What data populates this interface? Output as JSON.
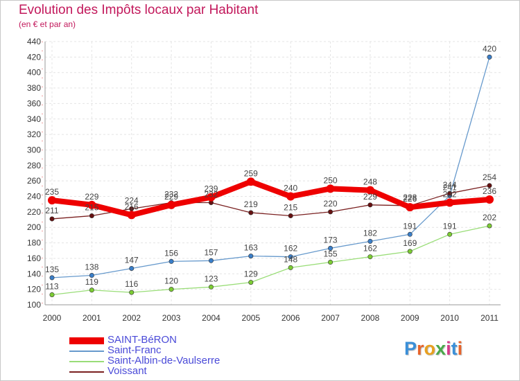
{
  "header": {
    "title": "Evolution des Impôts locaux par Habitant",
    "subtitle": "(en € et par an)"
  },
  "logo": {
    "text": "Proxiti",
    "letters": [
      "P",
      "r",
      "o",
      "x",
      "i",
      "t",
      "i"
    ],
    "colors": [
      "#3a8fd8",
      "#e8642a",
      "#e8a020",
      "#4aa84a",
      "#d83a8a",
      "#3a8fd8",
      "#e8642a"
    ]
  },
  "chart_data": {
    "type": "line",
    "title": "Evolution des Impôts locaux par Habitant",
    "subtitle": "(en € et par an)",
    "xlabel": "",
    "ylabel": "",
    "ylim": [
      100,
      440
    ],
    "ytick_step": 20,
    "grid": true,
    "legend_position": "bottom-left",
    "categories": [
      "2000",
      "2001",
      "2002",
      "2003",
      "2004",
      "2005",
      "2006",
      "2007",
      "2008",
      "2009",
      "2010",
      "2011"
    ],
    "series": [
      {
        "name": "SAINT-BéRON",
        "color": "#ee0000",
        "marker_color": "#ee0000",
        "thick": true,
        "values": [
          235,
          229,
          216,
          229,
          239,
          259,
          240,
          250,
          248,
          226,
          232,
          236
        ],
        "labels": [
          "235",
          "229",
          "216",
          "229",
          "239",
          "259",
          "240",
          "250",
          "248",
          "226",
          "232",
          "236"
        ]
      },
      {
        "name": "Saint-Franc",
        "color": "#6699cc",
        "marker_color": "#3a7ec8",
        "thick": false,
        "values": [
          135,
          138,
          147,
          156,
          157,
          163,
          162,
          173,
          182,
          191,
          241,
          420
        ],
        "labels": [
          "135",
          "138",
          "147",
          "156",
          "157",
          "163",
          "162",
          "173",
          "182",
          "191",
          "241",
          "420"
        ]
      },
      {
        "name": "Saint-Albin-de-Vaulserre",
        "color": "#99dd77",
        "marker_color": "#7ccc33",
        "thick": false,
        "values": [
          113,
          119,
          116,
          120,
          123,
          129,
          148,
          155,
          162,
          169,
          191,
          202
        ],
        "labels": [
          "113",
          "119",
          "116",
          "120",
          "123",
          "129",
          "148",
          "155",
          "162",
          "169",
          "191",
          "202"
        ]
      },
      {
        "name": "Voissant",
        "color": "#7a2020",
        "marker_color": "#661111",
        "thick": false,
        "values": [
          211,
          215,
          224,
          232,
          232,
          219,
          215,
          220,
          229,
          228,
          244,
          254
        ],
        "labels": [
          "211",
          "215",
          "224",
          "232",
          "232",
          "219",
          "215",
          "220",
          "229",
          "228",
          "244",
          "254"
        ]
      }
    ]
  }
}
